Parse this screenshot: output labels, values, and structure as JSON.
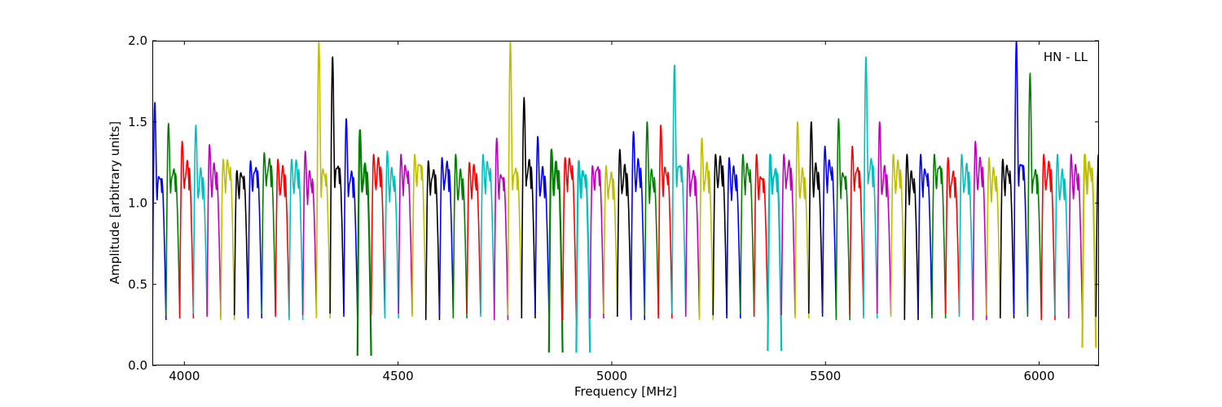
{
  "chart_data": {
    "type": "line",
    "title": "",
    "annotation": "HN - LL",
    "xlabel": "Frequency [MHz]",
    "ylabel": "Amplitude [arbitrary units]",
    "xlim": [
      3925,
      6140
    ],
    "ylim": [
      0.0,
      2.0
    ],
    "xticks": [
      4000,
      4500,
      5000,
      5500,
      6000
    ],
    "xtick_labels": [
      "4000",
      "4500",
      "5000",
      "5500",
      "6000"
    ],
    "yticks": [
      0.0,
      0.5,
      1.0,
      1.5,
      2.0
    ],
    "ytick_labels": [
      "0.0",
      "0.5",
      "1.0",
      "1.5",
      "2.0"
    ],
    "grid": false,
    "legend": "none",
    "color_cycle": [
      "#0000ff",
      "#008000",
      "#ff0000",
      "#00bfbf",
      "#bf00bf",
      "#bfbf00",
      "#000000"
    ],
    "error_band_color": "#bfbfbf",
    "spectral_windows": {
      "start_mhz": 3925,
      "width_mhz": 32,
      "count": 70,
      "edge_min": 0.28,
      "baseline": 1.1,
      "peak_values": [
        1.62,
        1.49,
        1.38,
        1.48,
        1.36,
        1.27,
        1.2,
        1.26,
        1.31,
        1.27,
        1.27,
        1.32,
        2.0,
        1.9,
        1.52,
        1.45,
        1.3,
        1.32,
        1.3,
        1.3,
        1.26,
        1.28,
        1.3,
        1.25,
        1.3,
        1.4,
        2.0,
        1.65,
        1.41,
        1.33,
        1.28,
        1.26,
        1.23,
        1.23,
        1.33,
        1.44,
        1.5,
        1.48,
        1.85,
        1.3,
        1.4,
        1.3,
        1.28,
        1.3,
        1.3,
        1.3,
        1.3,
        1.5,
        1.5,
        1.35,
        1.52,
        1.35,
        1.9,
        1.5,
        1.3,
        1.3,
        1.3,
        1.3,
        1.28,
        1.3,
        1.38,
        1.28,
        1.27,
        2.0,
        1.8,
        1.3,
        1.3,
        1.3,
        1.3,
        1.3
      ],
      "deep_dips": [
        {
          "x": 4425,
          "min": 0.06
        },
        {
          "x": 4880,
          "min": 0.08
        },
        {
          "x": 4925,
          "min": 0.08
        },
        {
          "x": 5375,
          "min": 0.09
        },
        {
          "x": 6130,
          "min": 0.11
        }
      ]
    }
  }
}
